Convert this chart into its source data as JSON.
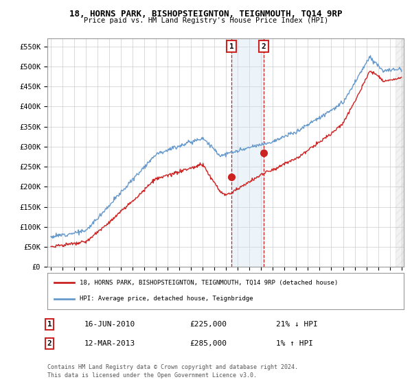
{
  "title1": "18, HORNS PARK, BISHOPSTEIGNTON, TEIGNMOUTH, TQ14 9RP",
  "title2": "Price paid vs. HM Land Registry's House Price Index (HPI)",
  "ylabel_ticks": [
    "£0",
    "£50K",
    "£100K",
    "£150K",
    "£200K",
    "£250K",
    "£300K",
    "£350K",
    "£400K",
    "£450K",
    "£500K",
    "£550K"
  ],
  "ytick_values": [
    0,
    50000,
    100000,
    150000,
    200000,
    250000,
    300000,
    350000,
    400000,
    450000,
    500000,
    550000
  ],
  "legend_line1": "18, HORNS PARK, BISHOPSTEIGNTON, TEIGNMOUTH, TQ14 9RP (detached house)",
  "legend_line2": "HPI: Average price, detached house, Teignbridge",
  "transaction1_date": "16-JUN-2010",
  "transaction1_price": 225000,
  "transaction1_pct": "21% ↓ HPI",
  "transaction2_date": "12-MAR-2013",
  "transaction2_price": 285000,
  "transaction2_pct": "1% ↑ HPI",
  "footnote1": "Contains HM Land Registry data © Crown copyright and database right 2024.",
  "footnote2": "This data is licensed under the Open Government Licence v3.0.",
  "hpi_color": "#6699cc",
  "price_color": "#cc2222",
  "marker_color": "#cc2222",
  "bg_color": "#ffffff",
  "grid_color": "#cccccc",
  "annotation_box_color": "#cc2222",
  "shade_color": "#cce0f0"
}
